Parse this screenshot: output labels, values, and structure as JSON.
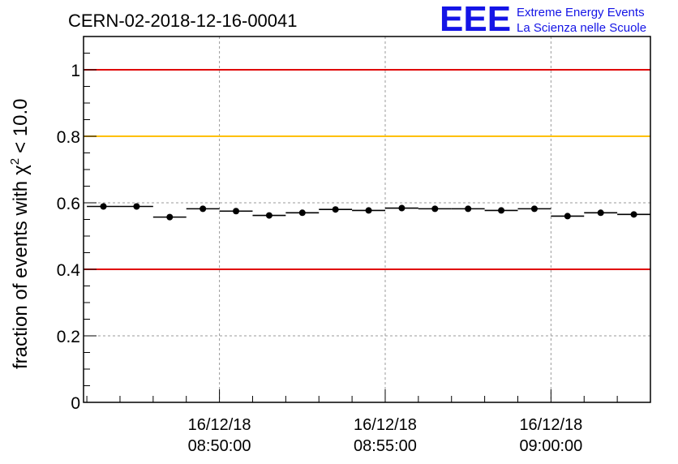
{
  "chart_data": {
    "type": "scatter",
    "title": "CERN-02-2018-12-16-00041",
    "xlabel": "",
    "ylabel": "fraction of events with",
    "ylabel_symbol": "χ",
    "ylabel_sup": "2",
    "ylabel_rest": "< 10.0",
    "ylim": [
      0,
      1.1
    ],
    "xlim_minutes": [
      -4.1,
      13.0
    ],
    "x_reference": "16/12/18 08:50:00",
    "y_ticks": [
      "0",
      "0.2",
      "0.4",
      "0.6",
      "0.8",
      "1"
    ],
    "y_tick_values": [
      0,
      0.2,
      0.4,
      0.6,
      0.8,
      1.0
    ],
    "x_ticks": [
      {
        "date": "16/12/18",
        "time": "08:50:00",
        "minutes": 0
      },
      {
        "date": "16/12/18",
        "time": "08:55:00",
        "minutes": 5
      },
      {
        "date": "16/12/18",
        "time": "09:00:00",
        "minutes": 10
      }
    ],
    "grid": true,
    "reference_lines": [
      {
        "y": 1.0,
        "color": "#e00000"
      },
      {
        "y": 0.8,
        "color": "#ffc000"
      },
      {
        "y": 0.4,
        "color": "#e00000"
      }
    ],
    "series": [
      {
        "bin_width_minutes": 1.0,
        "x_minutes": [
          -3.5,
          -2.5,
          -1.5,
          -0.5,
          0.5,
          1.5,
          2.5,
          3.5,
          4.5,
          5.5,
          6.5,
          7.5,
          8.5,
          9.5,
          10.5,
          11.5,
          12.5
        ],
        "values": [
          0.589,
          0.589,
          0.557,
          0.582,
          0.575,
          0.562,
          0.57,
          0.58,
          0.577,
          0.584,
          0.582,
          0.582,
          0.577,
          0.582,
          0.56,
          0.57,
          0.565
        ]
      }
    ]
  },
  "logo": {
    "mark": "EEE",
    "line1": "Extreme Energy Events",
    "line2": "La Scienza nelle Scuole"
  }
}
